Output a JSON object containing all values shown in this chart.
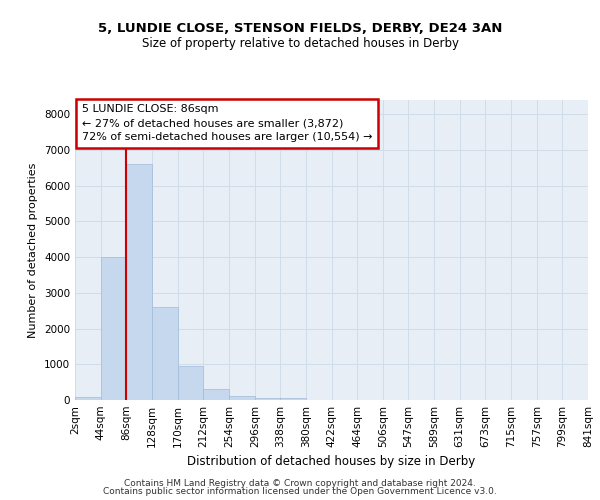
{
  "title_line1": "5, LUNDIE CLOSE, STENSON FIELDS, DERBY, DE24 3AN",
  "title_line2": "Size of property relative to detached houses in Derby",
  "xlabel": "Distribution of detached houses by size in Derby",
  "ylabel": "Number of detached properties",
  "footnote_line1": "Contains HM Land Registry data © Crown copyright and database right 2024.",
  "footnote_line2": "Contains public sector information licensed under the Open Government Licence v3.0.",
  "annotation_line1": "5 LUNDIE CLOSE: 86sqm",
  "annotation_line2": "← 27% of detached houses are smaller (3,872)",
  "annotation_line3": "72% of semi-detached houses are larger (10,554) →",
  "property_size": 86,
  "bar_edges": [
    2,
    44,
    86,
    128,
    170,
    212,
    254,
    296,
    338,
    380,
    422,
    464,
    506,
    547,
    589,
    631,
    673,
    715,
    757,
    799,
    841
  ],
  "bar_heights": [
    75,
    4000,
    6600,
    2600,
    950,
    320,
    100,
    60,
    60,
    0,
    0,
    0,
    0,
    0,
    0,
    0,
    0,
    0,
    0,
    0
  ],
  "bar_color": "#c5d8ee",
  "bar_edgecolor": "#a0bcd8",
  "vline_x": 86,
  "vline_color": "#cc0000",
  "annotation_box_edgecolor": "#cc0000",
  "grid_color": "#d0dce8",
  "bg_color": "#e8eef6",
  "ylim": [
    0,
    8400
  ],
  "yticks": [
    0,
    1000,
    2000,
    3000,
    4000,
    5000,
    6000,
    7000,
    8000
  ],
  "title1_fontsize": 9.5,
  "title2_fontsize": 8.5,
  "ylabel_fontsize": 8,
  "xlabel_fontsize": 8.5,
  "tick_fontsize": 7.5,
  "footnote_fontsize": 6.5,
  "annot_fontsize": 8
}
